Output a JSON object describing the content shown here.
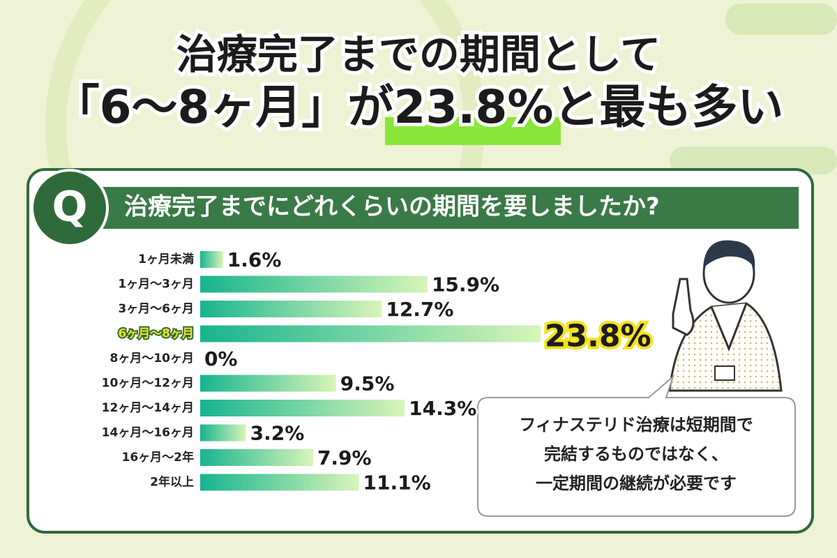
{
  "chart_data": {
    "type": "bar",
    "title": "治療完了までの期間として",
    "subtitle": "「6〜8ヶ月」が23.8%と最も多い",
    "question_mark": "Q",
    "question": "治療完了までにどれくらいの期間を要しましたか?",
    "categories": [
      "1ヶ月未満",
      "1ヶ月〜3ヶ月",
      "3ヶ月〜6ヶ月",
      "6ヶ月〜8ヶ月",
      "8ヶ月〜10ヶ月",
      "10ヶ月〜12ヶ月",
      "12ヶ月〜14ヶ月",
      "14ヶ月〜16ヶ月",
      "16ヶ月〜2年",
      "2年以上"
    ],
    "values": [
      1.6,
      15.9,
      12.7,
      23.8,
      0,
      9.5,
      14.3,
      3.2,
      7.9,
      11.1
    ],
    "value_labels": [
      "1.6%",
      "15.9%",
      "12.7%",
      "23.8%",
      "0%",
      "9.5%",
      "14.3%",
      "3.2%",
      "7.9%",
      "11.1%"
    ],
    "color": "#2fc9a0",
    "annotation": [
      "フィナステリド治療は短期間で",
      "完結するものではなく、",
      "一定期間の継続が必要です"
    ]
  }
}
